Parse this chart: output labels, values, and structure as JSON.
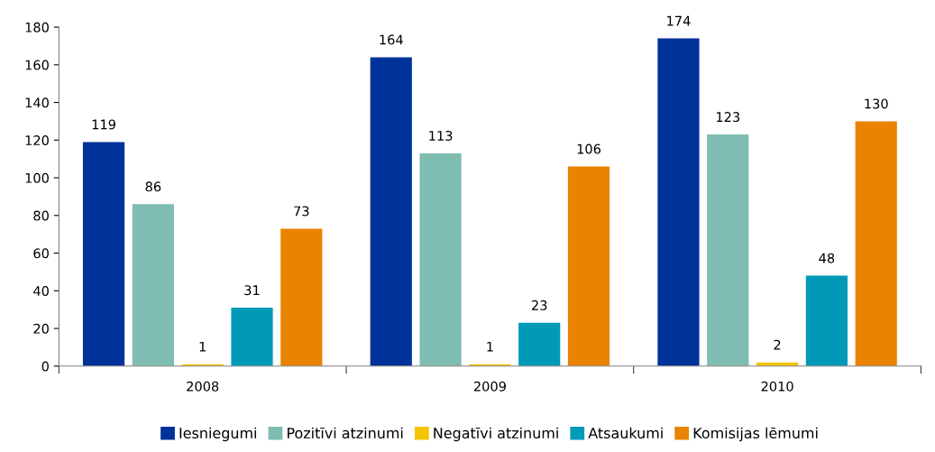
{
  "chart_data": {
    "type": "bar",
    "categories": [
      "2008",
      "2009",
      "2010"
    ],
    "series": [
      {
        "name": "Iesniegumi",
        "color": "#003399",
        "values": [
          119,
          164,
          174
        ]
      },
      {
        "name": "Pozitīvi atzinumi",
        "color": "#7fbcb1",
        "values": [
          86,
          113,
          123
        ]
      },
      {
        "name": "Negatīvi atzinumi",
        "color": "#f5c400",
        "values": [
          1,
          1,
          2
        ]
      },
      {
        "name": "Atsaukumi",
        "color": "#009ab8",
        "values": [
          31,
          23,
          48
        ]
      },
      {
        "name": "Komisijas lēmumi",
        "color": "#e98300",
        "values": [
          73,
          106,
          130
        ]
      }
    ],
    "ylim": [
      0,
      180
    ],
    "yticks": [
      0,
      20,
      40,
      60,
      80,
      100,
      120,
      140,
      160,
      180
    ],
    "grid": false,
    "legend": "bottom",
    "data_labels": true
  }
}
